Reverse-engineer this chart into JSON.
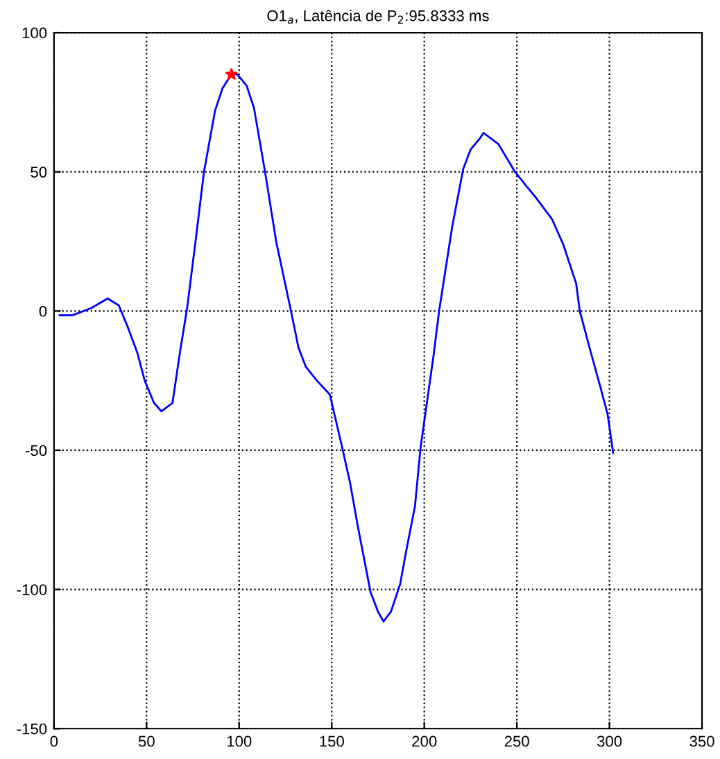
{
  "chart_data": {
    "type": "line",
    "title": "O1$_{a}$, Latência de P$_{2}$:95.8333 ms",
    "xlim": [
      0,
      350
    ],
    "ylim": [
      -150,
      100
    ],
    "xticks": [
      0,
      50,
      100,
      150,
      200,
      250,
      300,
      350
    ],
    "yticks": [
      -150,
      -100,
      -50,
      0,
      50,
      100
    ],
    "grid": true,
    "series": [
      {
        "color": "#0000ff",
        "marker": "none",
        "x": [
          3,
          10,
          20,
          29,
          35,
          40,
          45,
          49,
          54,
          58,
          64,
          68,
          72,
          77,
          81,
          87,
          91,
          95.8333,
          99,
          104,
          108,
          114,
          120,
          128,
          132,
          136,
          142,
          149,
          156,
          160,
          164,
          171,
          175,
          178,
          182,
          187,
          190,
          195,
          198,
          205,
          208,
          215,
          221,
          225,
          230,
          232,
          240,
          249,
          255,
          260,
          269,
          275,
          282,
          284,
          290,
          295,
          299,
          302
        ],
        "values": [
          -1.5,
          -1.5,
          1,
          4.5,
          2,
          -6,
          -15,
          -25,
          -33,
          -36,
          -33,
          -15,
          1.5,
          28,
          50,
          72,
          80,
          85,
          85,
          81,
          73,
          50,
          25,
          0,
          -13,
          -20,
          -25,
          -30,
          -50,
          -62,
          -77,
          -101,
          -108,
          -111.5,
          -108,
          -98,
          -87,
          -70,
          -49,
          -16,
          0,
          30,
          51,
          58,
          62,
          64,
          60,
          50,
          45,
          41,
          33,
          24,
          10,
          0,
          -15,
          -27,
          -37,
          -51
        ]
      },
      {
        "type": "scatter",
        "color": "#ff0000",
        "marker": "star",
        "x": [
          95.8333
        ],
        "values": [
          85
        ]
      }
    ]
  }
}
